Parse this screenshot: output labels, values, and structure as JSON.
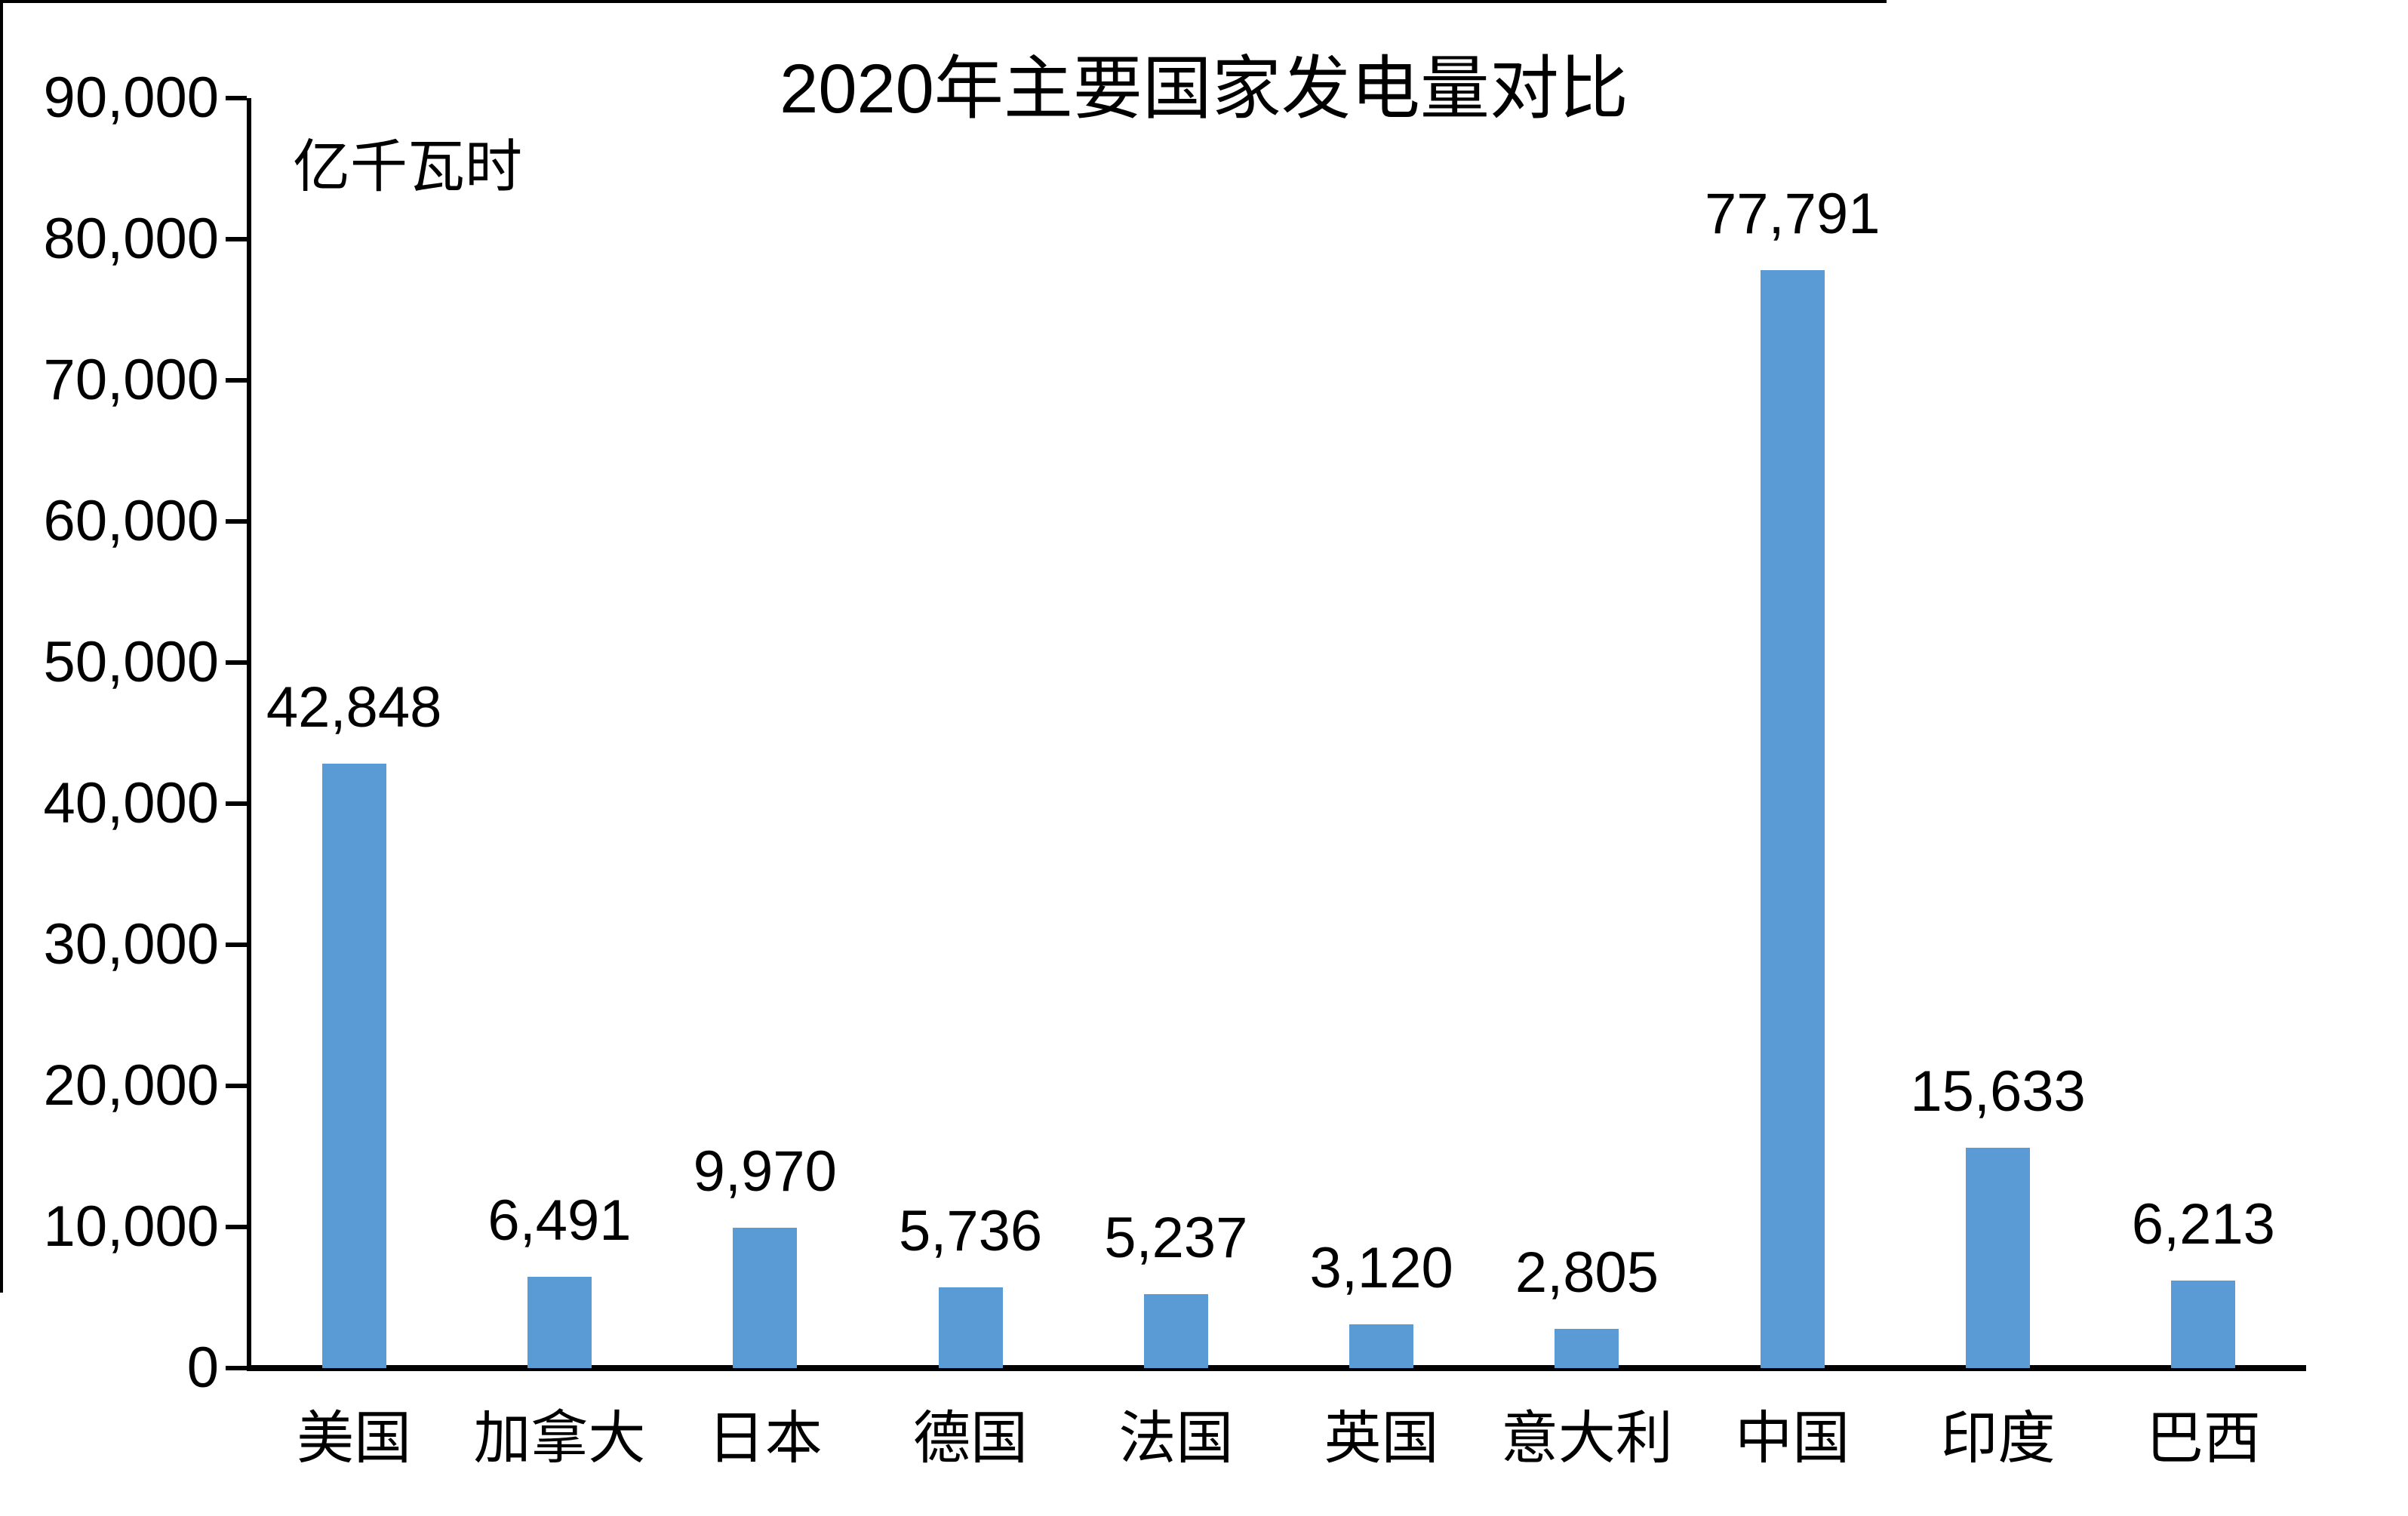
{
  "chart_data": {
    "type": "bar",
    "title": "2020年主要国家发电量对比",
    "unit_label": "亿千瓦时",
    "categories": [
      "美国",
      "加拿大",
      "日本",
      "德国",
      "法国",
      "英国",
      "意大利",
      "中国",
      "印度",
      "巴西"
    ],
    "values": [
      42848,
      6491,
      9970,
      5736,
      5237,
      3120,
      2805,
      77791,
      15633,
      6213
    ],
    "data_labels": [
      "42,848",
      "6,491",
      "9,970",
      "5,736",
      "5,237",
      "3,120",
      "2,805",
      "77,791",
      "15,633",
      "6,213"
    ],
    "y_ticks": [
      "0",
      "10,000",
      "20,000",
      "30,000",
      "40,000",
      "50,000",
      "60,000",
      "70,000",
      "80,000",
      "90,000"
    ],
    "y_tick_step": 10000,
    "ylim": [
      0,
      90000
    ],
    "xlabel": "",
    "ylabel": "亿千瓦时",
    "bar_color": "#5B9BD5",
    "axis_color": "#000000",
    "text_color": "#000000",
    "background_color": "#FFFFFF",
    "grid": false,
    "legend": "none"
  }
}
